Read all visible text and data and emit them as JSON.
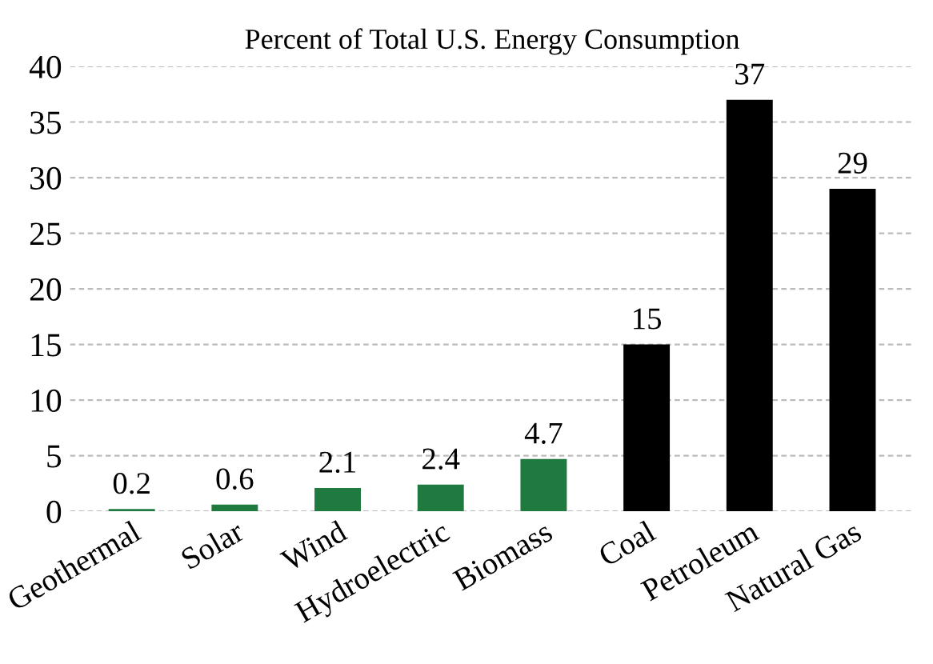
{
  "chart_data": {
    "type": "bar",
    "title": "Percent of Total U.S. Energy Consumption",
    "categories": [
      "Geothermal",
      "Solar",
      "Wind",
      "Hydroelectric",
      "Biomass",
      "Coal",
      "Petroleum",
      "Natural Gas"
    ],
    "values": [
      0.2,
      0.6,
      2.1,
      2.4,
      4.7,
      15,
      37,
      29
    ],
    "colors": [
      "#1f7a3f",
      "#1f7a3f",
      "#1f7a3f",
      "#1f7a3f",
      "#1f7a3f",
      "#000000",
      "#000000",
      "#000000"
    ],
    "ylim": [
      0,
      40
    ],
    "yticks": [
      0,
      5,
      10,
      15,
      20,
      25,
      30,
      35,
      40
    ],
    "grid": "y",
    "data_labels": true
  }
}
